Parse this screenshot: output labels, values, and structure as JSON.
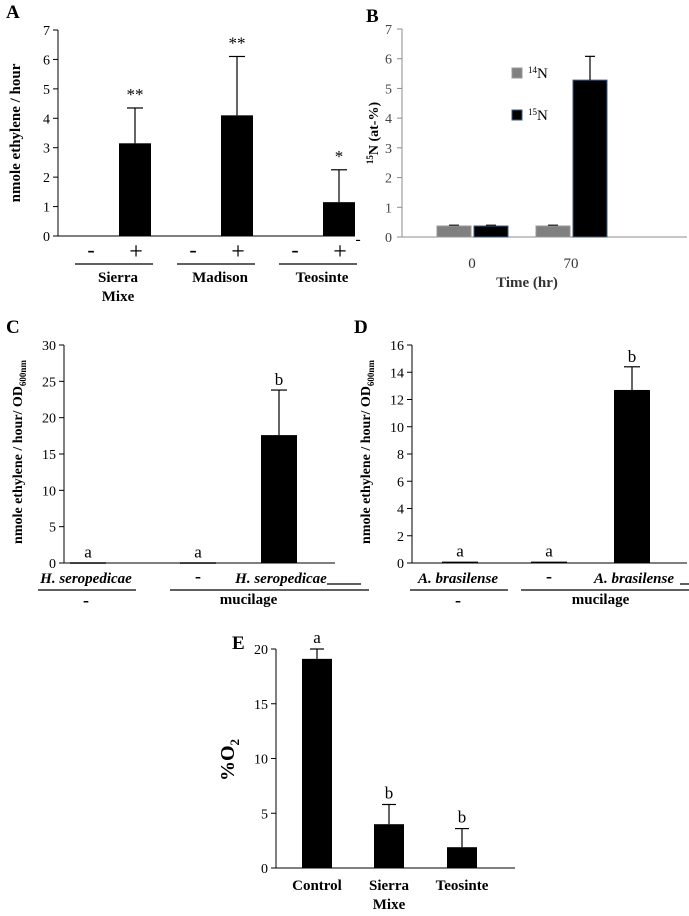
{
  "chart_data": [
    {
      "panel": "A",
      "type": "bar",
      "ylabel": "nmole ethylene / hour",
      "ylim": [
        0,
        7
      ],
      "yticks": [
        "0",
        "1",
        "2",
        "3",
        "4",
        "5",
        "6",
        "7"
      ],
      "treatment_labels": [
        "-",
        "+"
      ],
      "groups": [
        {
          "name_lines": [
            "Sierra",
            "Mixe"
          ],
          "values": [
            0,
            3.15
          ],
          "errors": [
            0,
            1.2
          ],
          "annotations": [
            "",
            "**"
          ]
        },
        {
          "name_lines": [
            "Madison"
          ],
          "values": [
            0,
            4.1
          ],
          "errors": [
            0,
            2.0
          ],
          "annotations": [
            "",
            "**"
          ]
        },
        {
          "name_lines": [
            "Teosinte"
          ],
          "values": [
            0,
            1.15
          ],
          "errors": [
            0,
            1.1
          ],
          "annotations": [
            "",
            "*"
          ]
        }
      ],
      "trailing_dash": "-"
    },
    {
      "panel": "B",
      "type": "bar",
      "ylabel_sup": "15",
      "ylabel_main": "N (at-%)",
      "xlabel": "Time (hr)",
      "ylim": [
        0,
        7
      ],
      "yticks": [
        "0",
        "1",
        "2",
        "3",
        "4",
        "5",
        "6",
        "7"
      ],
      "categories": [
        "0",
        "70"
      ],
      "series": [
        {
          "name_sup": "14",
          "name_main": "N",
          "color": "#808080",
          "values": [
            0.37,
            0.37
          ],
          "errors": [
            0.03,
            0.03
          ]
        },
        {
          "name_sup": "15",
          "name_main": "N",
          "color": "#000000",
          "values": [
            0.37,
            5.28
          ],
          "errors": [
            0.03,
            0.8
          ]
        }
      ]
    },
    {
      "panel": "C",
      "type": "bar",
      "ylabel_main": "nmole ethylene / hour/ OD",
      "ylabel_sub": "600nm",
      "ylim": [
        0,
        30
      ],
      "yticks": [
        "0",
        "5",
        "10",
        "15",
        "20",
        "25",
        "30"
      ],
      "bars": [
        {
          "label": "H. seropedicae",
          "value": 0.1,
          "error": 0,
          "annotation": "a"
        },
        {
          "label": "-",
          "value": 0.1,
          "error": 0,
          "annotation": "a"
        },
        {
          "label": "H. seropedicae",
          "value": 17.6,
          "error": 6.2,
          "annotation": "b"
        }
      ],
      "group_labels": [
        "-",
        "mucilage"
      ]
    },
    {
      "panel": "D",
      "type": "bar",
      "ylabel_main": "nmole ethylene / hour/ OD",
      "ylabel_sub": "600nm",
      "ylim": [
        0,
        16
      ],
      "yticks": [
        "0",
        "2",
        "4",
        "6",
        "8",
        "10",
        "12",
        "14",
        "16"
      ],
      "bars": [
        {
          "label": "A. brasilense",
          "value": 0.1,
          "error": 0,
          "annotation": "a"
        },
        {
          "label": "-",
          "value": 0.1,
          "error": 0,
          "annotation": "a"
        },
        {
          "label": "A. brasilense",
          "value": 12.7,
          "error": 1.7,
          "annotation": "b"
        }
      ],
      "group_labels": [
        "-",
        "mucilage"
      ]
    },
    {
      "panel": "E",
      "type": "bar",
      "ylabel_main": "%O",
      "ylabel_sub": "2",
      "ylim": [
        0,
        20
      ],
      "yticks": [
        "0",
        "5",
        "10",
        "15",
        "20"
      ],
      "bars": [
        {
          "label_lines": [
            "Control"
          ],
          "value": 19.1,
          "error": 0.9,
          "annotation": "a"
        },
        {
          "label_lines": [
            "Sierra",
            "Mixe"
          ],
          "value": 4.0,
          "error": 1.8,
          "annotation": "b"
        },
        {
          "label_lines": [
            "Teosinte"
          ],
          "value": 1.9,
          "error": 1.7,
          "annotation": "b"
        }
      ]
    }
  ]
}
